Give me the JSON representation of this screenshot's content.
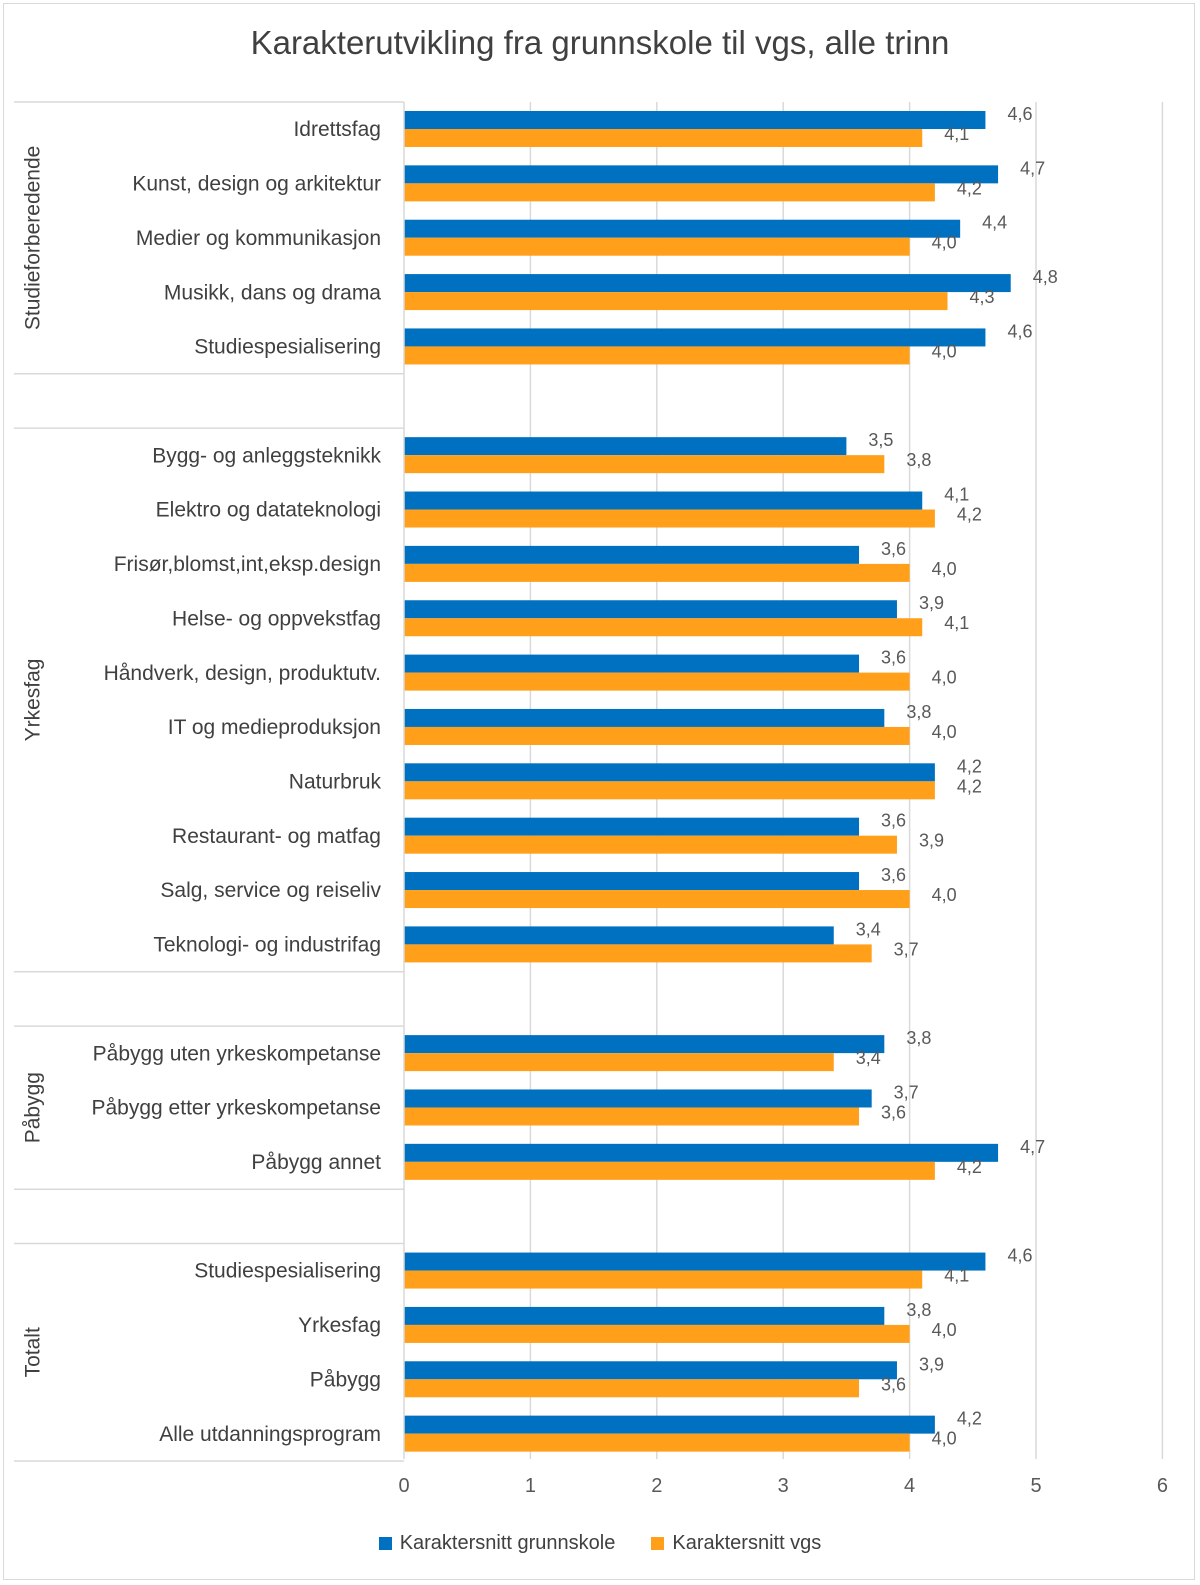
{
  "chart_data": {
    "type": "bar",
    "orientation": "horizontal",
    "title": "Karakterutvikling fra grunnskole til vgs, alle trinn",
    "xlim": [
      0,
      6
    ],
    "x_ticks": [
      "0",
      "1",
      "2",
      "3",
      "4",
      "5",
      "6"
    ],
    "grid": true,
    "legend_position": "bottom",
    "series": [
      {
        "name": "Karaktersnitt grunnskole",
        "color": "#0070c0"
      },
      {
        "name": "Karaktersnitt vgs",
        "color": "#ff9f1a"
      }
    ],
    "groups": [
      {
        "name": "Studieforberedende",
        "rows": [
          {
            "label": "Idrettsfag",
            "values": [
              4.6,
              4.1
            ],
            "labels": [
              "4,6",
              "4,1"
            ]
          },
          {
            "label": "Kunst, design og arkitektur",
            "values": [
              4.7,
              4.2
            ],
            "labels": [
              "4,7",
              "4,2"
            ]
          },
          {
            "label": "Medier og kommunikasjon",
            "values": [
              4.4,
              4.0
            ],
            "labels": [
              "4,4",
              "4,0"
            ]
          },
          {
            "label": "Musikk, dans og drama",
            "values": [
              4.8,
              4.3
            ],
            "labels": [
              "4,8",
              "4,3"
            ]
          },
          {
            "label": "Studiespesialisering",
            "values": [
              4.6,
              4.0
            ],
            "labels": [
              "4,6",
              "4,0"
            ]
          }
        ]
      },
      {
        "name": "Yrkesfag",
        "rows": [
          {
            "label": "Bygg- og anleggsteknikk",
            "values": [
              3.5,
              3.8
            ],
            "labels": [
              "3,5",
              "3,8"
            ]
          },
          {
            "label": "Elektro og datateknologi",
            "values": [
              4.1,
              4.2
            ],
            "labels": [
              "4,1",
              "4,2"
            ]
          },
          {
            "label": "Frisør,blomst,int,eksp.design",
            "values": [
              3.6,
              4.0
            ],
            "labels": [
              "3,6",
              "4,0"
            ]
          },
          {
            "label": "Helse- og oppvekstfag",
            "values": [
              3.9,
              4.1
            ],
            "labels": [
              "3,9",
              "4,1"
            ]
          },
          {
            "label": "Håndverk, design, produktutv.",
            "values": [
              3.6,
              4.0
            ],
            "labels": [
              "3,6",
              "4,0"
            ]
          },
          {
            "label": "IT og medieproduksjon",
            "values": [
              3.8,
              4.0
            ],
            "labels": [
              "3,8",
              "4,0"
            ]
          },
          {
            "label": "Naturbruk",
            "values": [
              4.2,
              4.2
            ],
            "labels": [
              "4,2",
              "4,2"
            ]
          },
          {
            "label": "Restaurant- og matfag",
            "values": [
              3.6,
              3.9
            ],
            "labels": [
              "3,6",
              "3,9"
            ]
          },
          {
            "label": "Salg, service og reiseliv",
            "values": [
              3.6,
              4.0
            ],
            "labels": [
              "3,6",
              "4,0"
            ]
          },
          {
            "label": "Teknologi- og industrifag",
            "values": [
              3.4,
              3.7
            ],
            "labels": [
              "3,4",
              "3,7"
            ]
          }
        ]
      },
      {
        "name": "Påbygg",
        "rows": [
          {
            "label": "Påbygg uten yrkeskompetanse",
            "values": [
              3.8,
              3.4
            ],
            "labels": [
              "3,8",
              "3,4"
            ]
          },
          {
            "label": "Påbygg etter yrkeskompetanse",
            "values": [
              3.7,
              3.6
            ],
            "labels": [
              "3,7",
              "3,6"
            ]
          },
          {
            "label": "Påbygg annet",
            "values": [
              4.7,
              4.2
            ],
            "labels": [
              "4,7",
              "4,2"
            ]
          }
        ]
      },
      {
        "name": "Totalt",
        "rows": [
          {
            "label": "Studiespesialisering",
            "values": [
              4.6,
              4.1
            ],
            "labels": [
              "4,6",
              "4,1"
            ]
          },
          {
            "label": "Yrkesfag",
            "values": [
              3.8,
              4.0
            ],
            "labels": [
              "3,8",
              "4,0"
            ]
          },
          {
            "label": "Påbygg",
            "values": [
              3.9,
              3.6
            ],
            "labels": [
              "3,9",
              "3,6"
            ]
          },
          {
            "label": "Alle utdanningsprogram",
            "values": [
              4.2,
              4.0
            ],
            "labels": [
              "4,2",
              "4,0"
            ]
          }
        ]
      }
    ]
  }
}
